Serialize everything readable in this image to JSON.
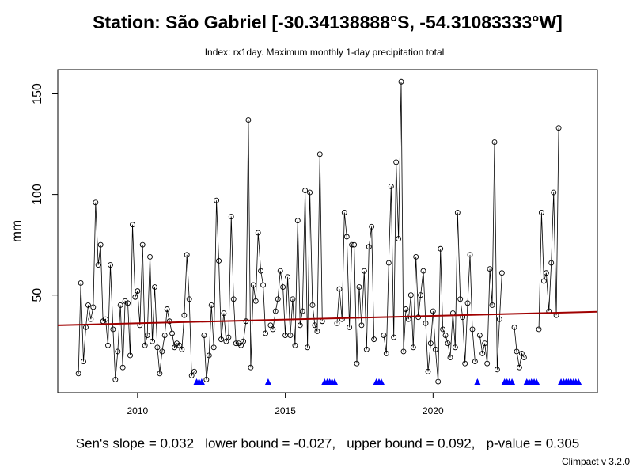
{
  "chart_data": {
    "type": "line",
    "title": "Station: São Gabriel [-30.34138888°S, -54.31083333°W]",
    "subtitle": "Index: rx1day. Maximum monthly 1-day precipitation total",
    "y_label": "mm",
    "footnote": "Sen's slope = 0.032   lower bound = -0.027,   upper bound = 0.092,   p-value = 0.305",
    "credit": "Climpact v 3.2.0",
    "x": [
      2008,
      2008.08,
      2008.17,
      2008.25,
      2008.33,
      2008.42,
      2008.5,
      2008.58,
      2008.67,
      2008.75,
      2008.83,
      2008.92,
      2009,
      2009.08,
      2009.17,
      2009.25,
      2009.33,
      2009.42,
      2009.5,
      2009.58,
      2009.67,
      2009.75,
      2009.83,
      2009.92,
      2010,
      2010.08,
      2010.17,
      2010.25,
      2010.33,
      2010.42,
      2010.5,
      2010.58,
      2010.67,
      2010.75,
      2010.83,
      2010.92,
      2011,
      2011.08,
      2011.17,
      2011.25,
      2011.33,
      2011.42,
      2011.5,
      2011.58,
      2011.67,
      2011.75,
      2011.83,
      2011.92,
      2012,
      2012.08,
      2012.17,
      2012.25,
      2012.33,
      2012.42,
      2012.5,
      2012.58,
      2012.67,
      2012.75,
      2012.83,
      2012.92,
      2013,
      2013.08,
      2013.17,
      2013.25,
      2013.33,
      2013.42,
      2013.5,
      2013.58,
      2013.67,
      2013.75,
      2013.83,
      2013.92,
      2014,
      2014.08,
      2014.17,
      2014.25,
      2014.33,
      2014.42,
      2014.5,
      2014.58,
      2014.67,
      2014.75,
      2014.83,
      2014.92,
      2015,
      2015.08,
      2015.17,
      2015.25,
      2015.33,
      2015.42,
      2015.5,
      2015.58,
      2015.67,
      2015.75,
      2015.83,
      2015.92,
      2016,
      2016.08,
      2016.17,
      2016.25,
      2016.33,
      2016.42,
      2016.5,
      2016.58,
      2016.67,
      2016.75,
      2016.83,
      2016.92,
      2017,
      2017.08,
      2017.17,
      2017.25,
      2017.33,
      2017.42,
      2017.5,
      2017.58,
      2017.67,
      2017.75,
      2017.83,
      2017.92,
      2018,
      2018.08,
      2018.17,
      2018.25,
      2018.33,
      2018.42,
      2018.5,
      2018.58,
      2018.67,
      2018.75,
      2018.83,
      2018.92,
      2019,
      2019.08,
      2019.17,
      2019.25,
      2019.33,
      2019.42,
      2019.5,
      2019.58,
      2019.67,
      2019.75,
      2019.83,
      2019.92,
      2020,
      2020.08,
      2020.17,
      2020.25,
      2020.33,
      2020.42,
      2020.5,
      2020.58,
      2020.67,
      2020.75,
      2020.83,
      2020.92,
      2021,
      2021.08,
      2021.17,
      2021.25,
      2021.33,
      2021.42,
      2021.5,
      2021.58,
      2021.67,
      2021.75,
      2021.83,
      2021.92,
      2022,
      2022.08,
      2022.17,
      2022.25,
      2022.33,
      2022.42,
      2022.5,
      2022.58,
      2022.67,
      2022.75,
      2022.83,
      2022.92,
      2023,
      2023.08,
      2023.17,
      2023.25,
      2023.33,
      2023.42,
      2023.5,
      2023.58,
      2023.67,
      2023.75,
      2023.83,
      2023.92,
      2024,
      2024.08,
      2024.17,
      2024.25,
      2024.33,
      2024.42,
      2024.5,
      2024.58,
      2024.67,
      2024.75,
      2024.83,
      2024.92
    ],
    "values": [
      11,
      56,
      17,
      34,
      45,
      38,
      44,
      96,
      65,
      75,
      37,
      38,
      25,
      65,
      33,
      8,
      22,
      45,
      14,
      47,
      46,
      20,
      85,
      49,
      52,
      35,
      75,
      25,
      30,
      69,
      27,
      54,
      24,
      11,
      22,
      30,
      43,
      37,
      31,
      24,
      26,
      25,
      23,
      40,
      70,
      48,
      10,
      12,
      null,
      null,
      null,
      30,
      8,
      20,
      45,
      24,
      97,
      67,
      28,
      41,
      27,
      29,
      89,
      48,
      26,
      26,
      25,
      27,
      37,
      137,
      14,
      55,
      47,
      81,
      62,
      55,
      31,
      null,
      35,
      33,
      42,
      48,
      62,
      54,
      30,
      59,
      30,
      48,
      25,
      87,
      35,
      42,
      102,
      24,
      101,
      45,
      35,
      32,
      120,
      37,
      null,
      null,
      null,
      null,
      null,
      36,
      53,
      38,
      91,
      79,
      34,
      75,
      75,
      16,
      54,
      35,
      62,
      23,
      74,
      84,
      28,
      null,
      null,
      null,
      30,
      21,
      66,
      104,
      29,
      116,
      78,
      156,
      22,
      43,
      38,
      50,
      24,
      69,
      39,
      50,
      62,
      36,
      12,
      26,
      42,
      23,
      7,
      73,
      33,
      30,
      26,
      19,
      41,
      24,
      91,
      48,
      39,
      16,
      46,
      70,
      33,
      17,
      null,
      30,
      21,
      26,
      16,
      63,
      45,
      126,
      13,
      38,
      61,
      null,
      null,
      null,
      null,
      34,
      22,
      14,
      21,
      19,
      null,
      null,
      null,
      null,
      null,
      33,
      91,
      57,
      61,
      42,
      66,
      101,
      40,
      133,
      null,
      null,
      null,
      null,
      null,
      null,
      null,
      null
    ],
    "color": "#000000",
    "missing_color": "#0000ff",
    "trend": {
      "x": [
        2007.3,
        2025.56
      ],
      "values": [
        35,
        41.7
      ],
      "color": "#a00000"
    },
    "xlim": [
      2007.3,
      2025.56
    ],
    "ylim": [
      1.5,
      162
    ],
    "xticks": [
      2010,
      2015,
      2020
    ],
    "yticks": [
      50,
      100,
      150
    ]
  }
}
